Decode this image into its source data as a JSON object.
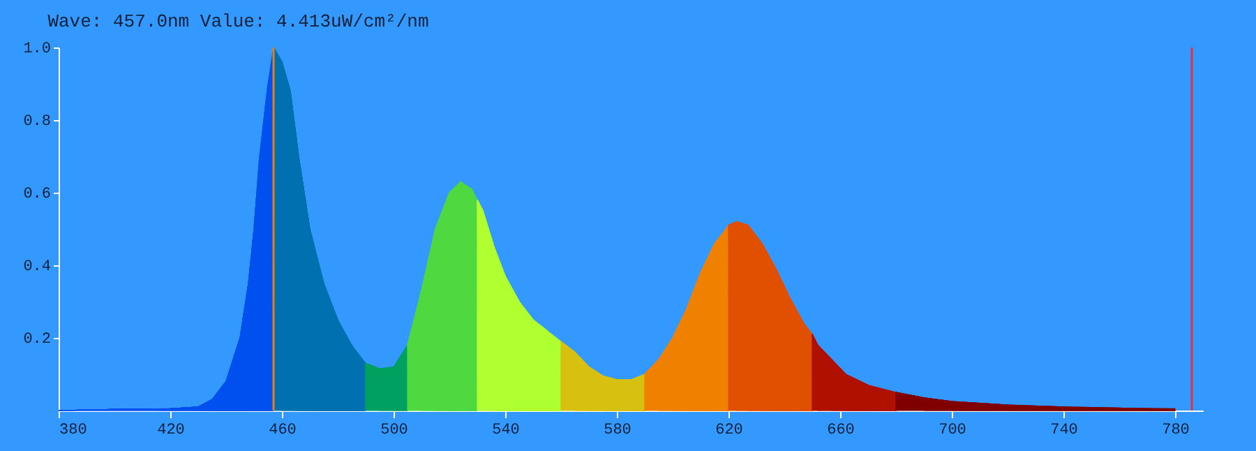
{
  "chart_data": {
    "type": "area",
    "title": "Wave: 457.0nm Value: 4.413uW/cm²/nm",
    "series": [
      {
        "color": "#0050f0",
        "x": [
          380,
          400,
          420,
          430,
          435,
          440,
          445,
          448,
          450,
          452,
          455,
          457
        ],
        "values": [
          0.0,
          0.003,
          0.005,
          0.01,
          0.03,
          0.08,
          0.2,
          0.35,
          0.5,
          0.7,
          0.9,
          1.0
        ]
      },
      {
        "color": "#0070b0",
        "x": [
          457,
          460,
          463,
          466,
          470,
          475,
          480,
          485,
          490
        ],
        "values": [
          1.0,
          0.96,
          0.88,
          0.7,
          0.5,
          0.35,
          0.25,
          0.18,
          0.13
        ]
      },
      {
        "color": "#00a060",
        "x": [
          490,
          495,
          500,
          505
        ],
        "values": [
          0.13,
          0.115,
          0.12,
          0.18
        ]
      },
      {
        "color": "#50d840",
        "x": [
          505,
          510,
          515,
          520,
          524,
          528,
          530
        ],
        "values": [
          0.18,
          0.33,
          0.5,
          0.6,
          0.63,
          0.61,
          0.58
        ]
      },
      {
        "color": "#b0ff30",
        "x": [
          530,
          532,
          536,
          540,
          545,
          550,
          555,
          560
        ],
        "values": [
          0.58,
          0.55,
          0.45,
          0.37,
          0.3,
          0.25,
          0.22,
          0.19
        ]
      },
      {
        "color": "#d8c010",
        "x": [
          560,
          565,
          570,
          575,
          580,
          585,
          590
        ],
        "values": [
          0.19,
          0.16,
          0.12,
          0.095,
          0.085,
          0.085,
          0.1
        ]
      },
      {
        "color": "#f08000",
        "x": [
          590,
          595,
          600,
          605,
          610,
          615,
          620
        ],
        "values": [
          0.1,
          0.14,
          0.2,
          0.28,
          0.38,
          0.46,
          0.51
        ]
      },
      {
        "color": "#e05000",
        "x": [
          620,
          623,
          627,
          632,
          637,
          642,
          647,
          650
        ],
        "values": [
          0.51,
          0.52,
          0.51,
          0.46,
          0.39,
          0.31,
          0.24,
          0.21
        ]
      },
      {
        "color": "#b01000",
        "x": [
          650,
          652,
          657,
          662,
          670,
          680
        ],
        "values": [
          0.21,
          0.18,
          0.14,
          0.1,
          0.07,
          0.05
        ]
      },
      {
        "color": "#800000",
        "x": [
          680,
          690,
          700,
          720,
          740,
          760,
          780
        ],
        "values": [
          0.05,
          0.035,
          0.025,
          0.015,
          0.01,
          0.007,
          0.005
        ]
      }
    ],
    "xlim": [
      380,
      790
    ],
    "xticks": [
      380,
      420,
      460,
      500,
      540,
      580,
      620,
      660,
      700,
      740,
      780
    ],
    "ylim": [
      0,
      1
    ],
    "yticks": [
      {
        "value": 0.2,
        "label": "0.2"
      },
      {
        "value": 0.4,
        "label": "0.4"
      },
      {
        "value": 0.6,
        "label": "0.6"
      },
      {
        "value": 0.8,
        "label": "0.8"
      },
      {
        "value": 1.0,
        "label": "1.0"
      }
    ],
    "ref_lines": [
      {
        "axis": "x",
        "value": 457,
        "color": "#e08020"
      },
      {
        "axis": "x",
        "value": 786,
        "color": "#e03050"
      }
    ],
    "grid": false
  }
}
